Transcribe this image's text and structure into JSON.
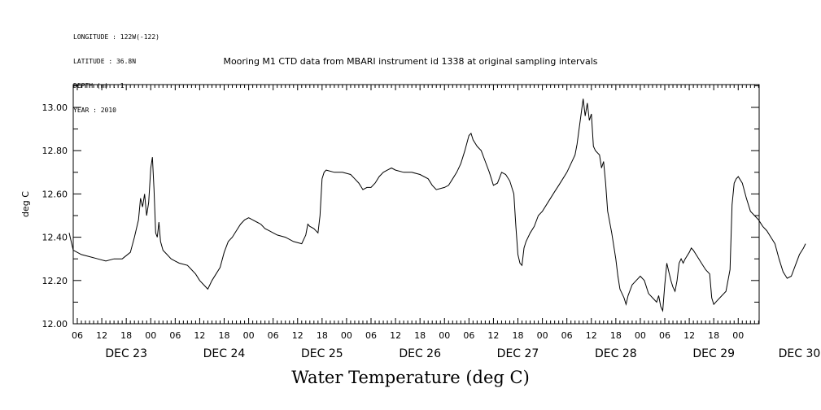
{
  "header": {
    "meta_lines": [
      "LONGITUDE : 122W(-122)",
      "LATITUDE : 36.8N",
      "DEPTH (m) : 1",
      "YEAR : 2010"
    ],
    "title": "Mooring M1 CTD data from MBARI instrument id 1338 at original sampling intervals"
  },
  "chart_data": {
    "type": "line",
    "title": "Mooring M1 CTD data from MBARI instrument id 1338 at original sampling intervals",
    "xlabel": "Water Temperature (deg C)",
    "ylabel": "deg C",
    "xlim_hours_from_dec23_00": [
      4,
      172
    ],
    "ylim": [
      12.0,
      13.1
    ],
    "yticks": [
      12.0,
      12.2,
      12.4,
      12.6,
      12.8,
      13.0
    ],
    "ytick_labels": [
      "12.00",
      "12.20",
      "12.40",
      "12.60",
      "12.80",
      "13.00"
    ],
    "xtick_hour_labels": [
      "06",
      "12",
      "18",
      "00",
      "06",
      "12",
      "18",
      "00",
      "06",
      "12",
      "18",
      "00",
      "06",
      "12",
      "18",
      "00",
      "06",
      "12",
      "18",
      "00",
      "06",
      "12",
      "18",
      "00",
      "06",
      "12",
      "18",
      "00"
    ],
    "day_labels": [
      "DEC 23",
      "DEC 24",
      "DEC 25",
      "DEC 26",
      "DEC 27",
      "DEC 28",
      "DEC 29",
      "DEC 30"
    ],
    "grid": false,
    "series": [
      {
        "name": "Water Temperature",
        "points": [
          [
            4.0,
            12.42
          ],
          [
            5.0,
            12.34
          ],
          [
            7.0,
            12.32
          ],
          [
            9.0,
            12.31
          ],
          [
            11.0,
            12.3
          ],
          [
            13.0,
            12.29
          ],
          [
            15.0,
            12.3
          ],
          [
            17.0,
            12.3
          ],
          [
            19.0,
            12.33
          ],
          [
            20.0,
            12.4
          ],
          [
            21.0,
            12.48
          ],
          [
            21.5,
            12.58
          ],
          [
            22.0,
            12.54
          ],
          [
            22.5,
            12.6
          ],
          [
            23.0,
            12.5
          ],
          [
            23.5,
            12.56
          ],
          [
            24.0,
            12.72
          ],
          [
            24.4,
            12.77
          ],
          [
            24.8,
            12.62
          ],
          [
            25.2,
            12.42
          ],
          [
            25.6,
            12.4
          ],
          [
            26.0,
            12.47
          ],
          [
            26.4,
            12.38
          ],
          [
            27.0,
            12.34
          ],
          [
            28.0,
            12.32
          ],
          [
            29.0,
            12.3
          ],
          [
            30.0,
            12.29
          ],
          [
            31.0,
            12.28
          ],
          [
            33.0,
            12.27
          ],
          [
            34.0,
            12.25
          ],
          [
            35.0,
            12.23
          ],
          [
            36.0,
            12.2
          ],
          [
            37.0,
            12.18
          ],
          [
            38.0,
            12.16
          ],
          [
            39.0,
            12.2
          ],
          [
            40.0,
            12.23
          ],
          [
            41.0,
            12.26
          ],
          [
            42.0,
            12.33
          ],
          [
            43.0,
            12.38
          ],
          [
            44.0,
            12.4
          ],
          [
            45.0,
            12.43
          ],
          [
            46.0,
            12.46
          ],
          [
            47.0,
            12.48
          ],
          [
            48.0,
            12.49
          ],
          [
            49.0,
            12.48
          ],
          [
            50.0,
            12.47
          ],
          [
            51.0,
            12.46
          ],
          [
            52.0,
            12.44
          ],
          [
            53.0,
            12.43
          ],
          [
            55.0,
            12.41
          ],
          [
            57.0,
            12.4
          ],
          [
            59.0,
            12.38
          ],
          [
            61.0,
            12.37
          ],
          [
            62.0,
            12.41
          ],
          [
            62.5,
            12.46
          ],
          [
            63.0,
            12.45
          ],
          [
            64.0,
            12.44
          ],
          [
            65.0,
            12.42
          ],
          [
            65.5,
            12.5
          ],
          [
            66.0,
            12.67
          ],
          [
            66.5,
            12.7
          ],
          [
            67.0,
            12.71
          ],
          [
            69.0,
            12.7
          ],
          [
            71.0,
            12.7
          ],
          [
            73.0,
            12.69
          ],
          [
            74.0,
            12.67
          ],
          [
            75.0,
            12.65
          ],
          [
            76.0,
            12.62
          ],
          [
            77.0,
            12.63
          ],
          [
            78.0,
            12.63
          ],
          [
            79.0,
            12.65
          ],
          [
            80.0,
            12.68
          ],
          [
            81.0,
            12.7
          ],
          [
            82.0,
            12.71
          ],
          [
            83.0,
            12.72
          ],
          [
            84.0,
            12.71
          ],
          [
            86.0,
            12.7
          ],
          [
            88.0,
            12.7
          ],
          [
            90.0,
            12.69
          ],
          [
            92.0,
            12.67
          ],
          [
            93.0,
            12.64
          ],
          [
            94.0,
            12.62
          ],
          [
            96.0,
            12.63
          ],
          [
            97.0,
            12.64
          ],
          [
            98.0,
            12.67
          ],
          [
            99.0,
            12.7
          ],
          [
            100.0,
            12.74
          ],
          [
            101.0,
            12.8
          ],
          [
            102.0,
            12.87
          ],
          [
            102.5,
            12.88
          ],
          [
            103.0,
            12.85
          ],
          [
            104.0,
            12.82
          ],
          [
            105.0,
            12.8
          ],
          [
            106.0,
            12.75
          ],
          [
            107.0,
            12.7
          ],
          [
            108.0,
            12.64
          ],
          [
            109.0,
            12.65
          ],
          [
            110.0,
            12.7
          ],
          [
            111.0,
            12.69
          ],
          [
            112.0,
            12.66
          ],
          [
            113.0,
            12.6
          ],
          [
            113.5,
            12.45
          ],
          [
            114.0,
            12.32
          ],
          [
            114.5,
            12.28
          ],
          [
            115.0,
            12.27
          ],
          [
            115.5,
            12.35
          ],
          [
            116.0,
            12.38
          ],
          [
            117.0,
            12.42
          ],
          [
            118.0,
            12.45
          ],
          [
            119.0,
            12.5
          ],
          [
            120.0,
            12.52
          ],
          [
            121.0,
            12.55
          ],
          [
            122.0,
            12.58
          ],
          [
            123.0,
            12.61
          ],
          [
            124.0,
            12.64
          ],
          [
            125.0,
            12.67
          ],
          [
            126.0,
            12.7
          ],
          [
            127.0,
            12.74
          ],
          [
            128.0,
            12.78
          ],
          [
            128.5,
            12.83
          ],
          [
            129.0,
            12.9
          ],
          [
            129.5,
            12.97
          ],
          [
            130.0,
            13.04
          ],
          [
            130.5,
            12.96
          ],
          [
            131.0,
            13.02
          ],
          [
            131.5,
            12.94
          ],
          [
            132.0,
            12.97
          ],
          [
            132.5,
            12.82
          ],
          [
            133.0,
            12.8
          ],
          [
            134.0,
            12.78
          ],
          [
            134.5,
            12.72
          ],
          [
            135.0,
            12.75
          ],
          [
            135.5,
            12.65
          ],
          [
            136.0,
            12.52
          ],
          [
            137.0,
            12.42
          ],
          [
            138.0,
            12.3
          ],
          [
            138.5,
            12.22
          ],
          [
            139.0,
            12.16
          ],
          [
            140.0,
            12.12
          ],
          [
            140.5,
            12.09
          ],
          [
            141.0,
            12.13
          ],
          [
            142.0,
            12.18
          ],
          [
            143.0,
            12.2
          ],
          [
            144.0,
            12.22
          ],
          [
            145.0,
            12.2
          ],
          [
            146.0,
            12.14
          ],
          [
            147.0,
            12.12
          ],
          [
            148.0,
            12.1
          ],
          [
            148.5,
            12.13
          ],
          [
            149.0,
            12.08
          ],
          [
            149.5,
            12.06
          ],
          [
            150.0,
            12.18
          ],
          [
            150.5,
            12.28
          ],
          [
            151.0,
            12.24
          ],
          [
            151.5,
            12.2
          ],
          [
            152.0,
            12.17
          ],
          [
            152.5,
            12.15
          ],
          [
            153.0,
            12.2
          ],
          [
            153.5,
            12.28
          ],
          [
            154.0,
            12.3
          ],
          [
            154.5,
            12.28
          ],
          [
            155.0,
            12.3
          ],
          [
            156.0,
            12.33
          ],
          [
            156.5,
            12.35
          ],
          [
            157.0,
            12.34
          ],
          [
            158.0,
            12.31
          ],
          [
            159.0,
            12.28
          ],
          [
            160.0,
            12.25
          ],
          [
            161.0,
            12.23
          ],
          [
            161.5,
            12.12
          ],
          [
            162.0,
            12.09
          ],
          [
            163.0,
            12.11
          ],
          [
            164.0,
            12.13
          ],
          [
            165.0,
            12.15
          ],
          [
            166.0,
            12.25
          ],
          [
            166.5,
            12.55
          ],
          [
            167.0,
            12.65
          ],
          [
            167.5,
            12.67
          ],
          [
            168.0,
            12.68
          ],
          [
            169.0,
            12.65
          ],
          [
            170.0,
            12.58
          ],
          [
            171.0,
            12.52
          ],
          [
            172.0,
            12.5
          ],
          [
            173.0,
            12.48
          ],
          [
            174.0,
            12.45
          ],
          [
            175.0,
            12.43
          ],
          [
            176.0,
            12.4
          ],
          [
            177.0,
            12.37
          ],
          [
            178.0,
            12.3
          ],
          [
            179.0,
            12.24
          ],
          [
            180.0,
            12.21
          ],
          [
            181.0,
            12.22
          ],
          [
            182.0,
            12.27
          ],
          [
            183.0,
            12.32
          ],
          [
            184.0,
            12.35
          ],
          [
            184.5,
            12.37
          ]
        ]
      }
    ]
  }
}
